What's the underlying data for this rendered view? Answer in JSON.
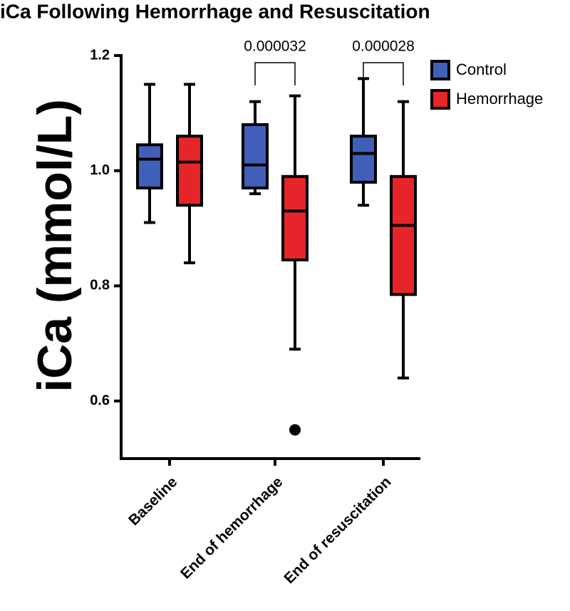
{
  "chart_data": {
    "type": "box",
    "title": "iCa Following Hemorrhage and Resuscitation",
    "y_label": "iCa (mmol/L)",
    "categories": [
      "Baseline",
      "End of hemorrhage",
      "End of resuscitation"
    ],
    "series": [
      {
        "name": "Control",
        "color": "#3f5fb8",
        "values": [
          {
            "min": 0.91,
            "q1": 0.97,
            "median": 1.02,
            "q3": 1.045,
            "max": 1.15,
            "outliers": []
          },
          {
            "min": 0.96,
            "q1": 0.97,
            "median": 1.01,
            "q3": 1.08,
            "max": 1.12,
            "outliers": []
          },
          {
            "min": 0.94,
            "q1": 0.98,
            "median": 1.03,
            "q3": 1.06,
            "max": 1.16,
            "outliers": []
          }
        ]
      },
      {
        "name": "Hemorrhage",
        "color": "#e5252a",
        "values": [
          {
            "min": 0.84,
            "q1": 0.94,
            "median": 1.015,
            "q3": 1.06,
            "max": 1.15,
            "outliers": []
          },
          {
            "min": 0.69,
            "q1": 0.845,
            "median": 0.93,
            "q3": 0.99,
            "max": 1.13,
            "outliers": [
              0.55
            ]
          },
          {
            "min": 0.64,
            "q1": 0.785,
            "median": 0.905,
            "q3": 0.99,
            "max": 1.12,
            "outliers": []
          }
        ]
      }
    ],
    "annotations": [
      {
        "text": "0.000032",
        "category": "End of hemorrhage"
      },
      {
        "text": "0.000028",
        "category": "End of resuscitation"
      }
    ],
    "ylim": [
      0.5,
      1.2
    ],
    "yticks": [
      0.6,
      0.8,
      {
        "value": 1.0,
        "label": "1.0"
      },
      1.2
    ],
    "legend": "top-right"
  }
}
